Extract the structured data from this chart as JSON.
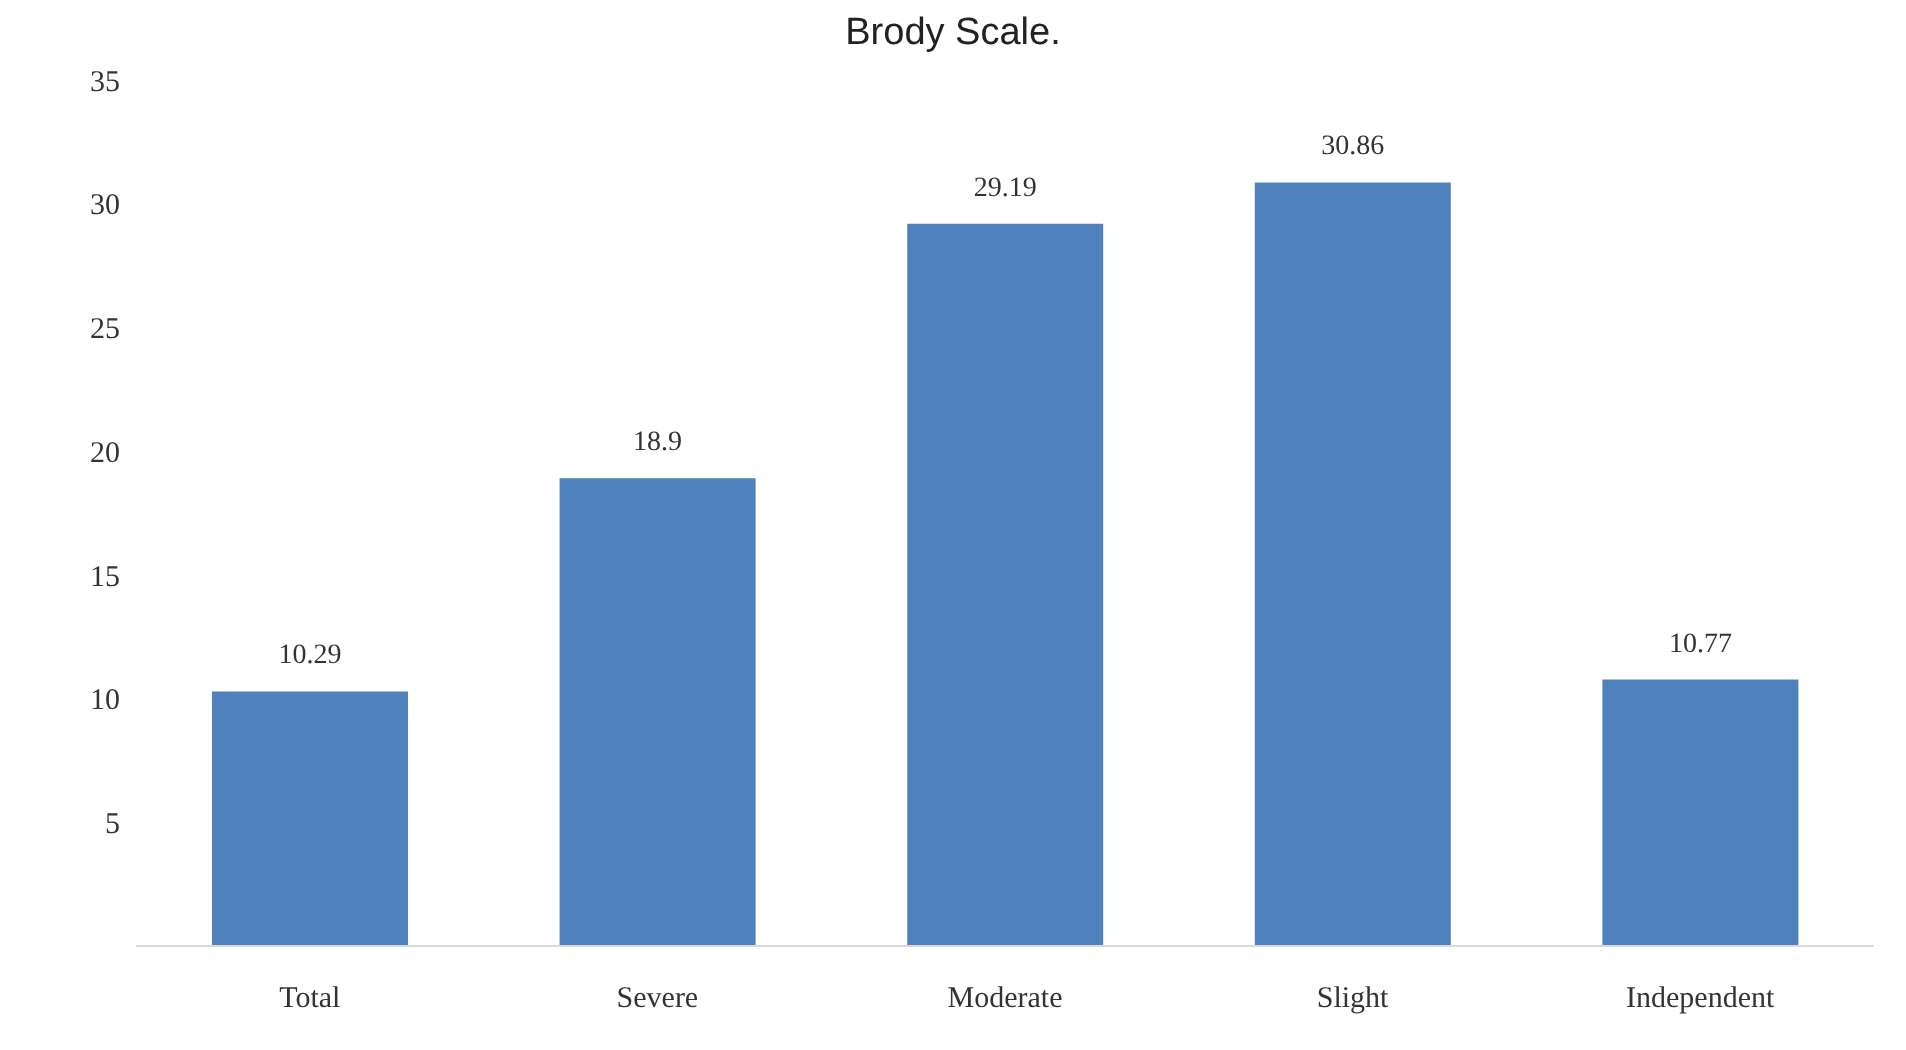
{
  "chart_data": {
    "type": "bar",
    "title": "Brody Scale.",
    "categories": [
      "Total",
      "Severe",
      "Moderate",
      "Slight",
      "Independent"
    ],
    "values": [
      10.29,
      18.9,
      29.19,
      30.86,
      10.77
    ],
    "color": "#4f81bd",
    "ylim": [
      0,
      35
    ],
    "yticks": [
      5,
      10,
      15,
      20,
      25,
      30,
      35
    ],
    "grid": false,
    "data_labels": true
  }
}
